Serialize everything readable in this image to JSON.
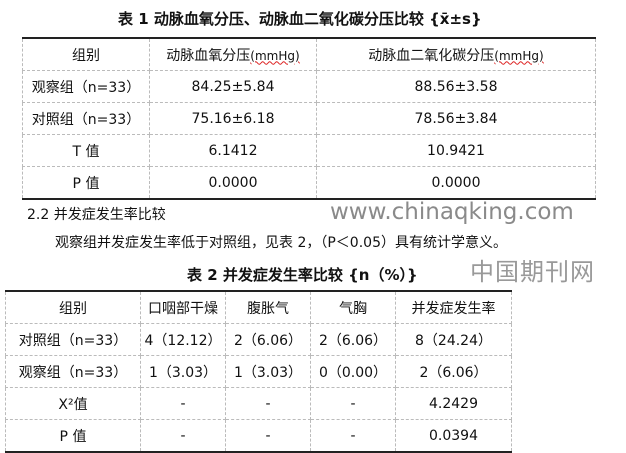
{
  "table1": {
    "title": "表 1 动脉血氧分压、动脉血二氧化碳分压比较 {x̄±s}",
    "headers": [
      "组别",
      "动脉血氧分压",
      "动脉血二氧化碳分压"
    ],
    "unit": "(mmHg)",
    "rows": [
      [
        "观察组（n=33）",
        "84.25±5.84",
        "88.56±3.58"
      ],
      [
        "对照组（n=33）",
        "75.16±6.18",
        "78.56±3.84"
      ],
      [
        "T 值",
        "6.1412",
        "10.9421"
      ],
      [
        "P 值",
        "0.0000",
        "0.0000"
      ]
    ]
  },
  "section": {
    "heading": "2.2 并发症发生率比较",
    "paragraph": "观察组并发症发生率低于对照组，见表 2，（P＜0.05）具有统计学意义。"
  },
  "table2": {
    "title": "表 2 并发症发生率比较 {n（%）}",
    "headers": [
      "组别",
      "口咽部干燥",
      "腹胀气",
      "气胸",
      "并发症发生率"
    ],
    "rows": [
      [
        "对照组（n=33）",
        "4（12.12）",
        "2（6.06）",
        "2（6.06）",
        "8（24.24）"
      ],
      [
        "观察组（n=33）",
        "1（3.03）",
        "1（3.03）",
        "0（0.00）",
        "2（6.06）"
      ],
      [
        "X²值",
        "-",
        "-",
        "-",
        "4.2429"
      ],
      [
        "P 值",
        "-",
        "-",
        "-",
        "0.0394"
      ]
    ]
  },
  "watermark": {
    "cn": "中国期刊网",
    "url": "www.chinaqking.com"
  }
}
